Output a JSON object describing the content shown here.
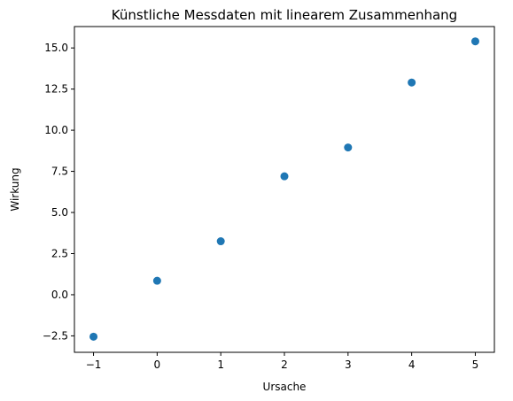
{
  "chart_data": {
    "type": "scatter",
    "title": "Künstliche Messdaten mit linearem Zusammenhang",
    "xlabel": "Ursache",
    "ylabel": "Wirkung",
    "x": [
      -1,
      0,
      1,
      2,
      3,
      4,
      5
    ],
    "y": [
      -2.55,
      0.85,
      3.25,
      7.2,
      8.95,
      12.9,
      15.4
    ],
    "xlim": [
      -1.3,
      5.3
    ],
    "ylim": [
      -3.5,
      16.3
    ],
    "xticks": [
      -1,
      0,
      1,
      2,
      3,
      4,
      5
    ],
    "xtick_labels": [
      "−1",
      "0",
      "1",
      "2",
      "3",
      "4",
      "5"
    ],
    "yticks": [
      -2.5,
      0,
      2.5,
      5,
      7.5,
      10,
      12.5,
      15
    ],
    "ytick_labels": [
      "−2.5",
      "0.0",
      "2.5",
      "5.0",
      "7.5",
      "10.0",
      "12.5",
      "15.0"
    ],
    "grid": false,
    "marker_color": "#1f77b4"
  }
}
